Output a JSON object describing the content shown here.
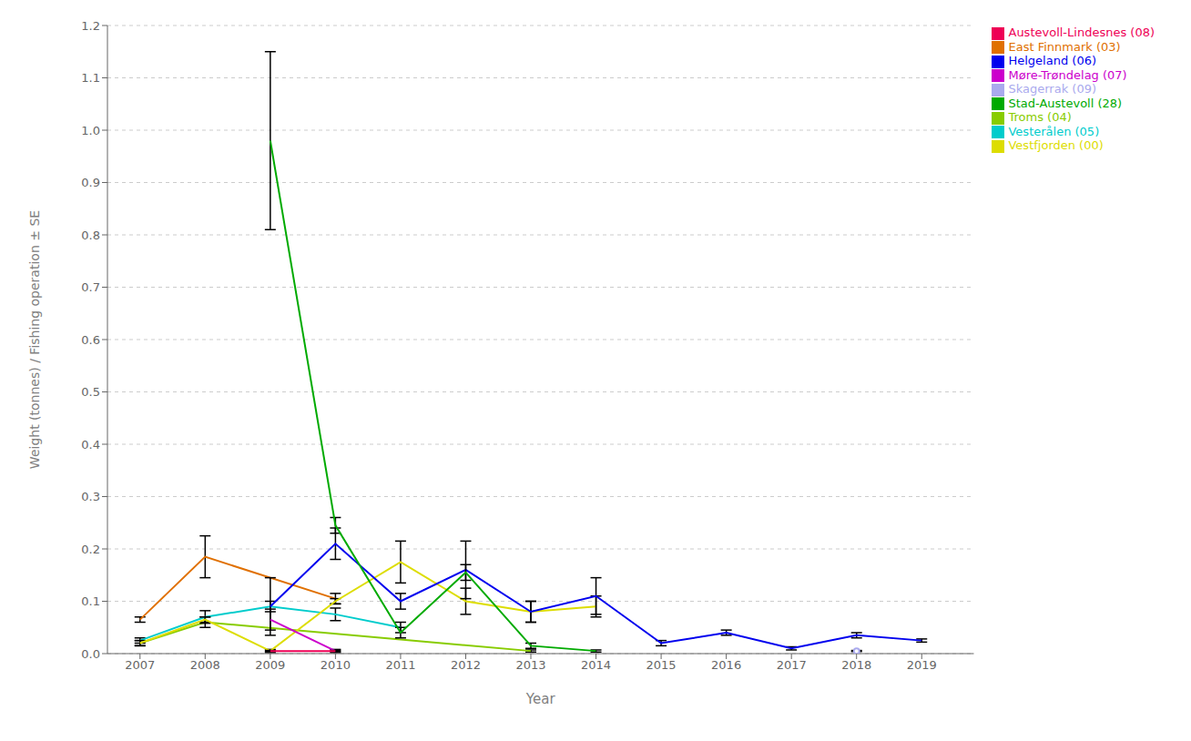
{
  "chart_data": {
    "type": "line",
    "x": [
      2007,
      2008,
      2009,
      2010,
      2011,
      2012,
      2013,
      2014,
      2015,
      2016,
      2017,
      2018,
      2019
    ],
    "xlim": [
      2006.5,
      2019.8
    ],
    "xticks": [
      2007,
      2008,
      2009,
      2010,
      2011,
      2012,
      2013,
      2014,
      2015,
      2016,
      2017,
      2018,
      2019
    ],
    "ylim": [
      0,
      1.2
    ],
    "yticks": [
      {
        "value": 0,
        "label": "0.0"
      },
      0.1,
      0.2,
      0.3,
      0.4,
      0.5,
      0.6,
      0.7,
      0.8,
      0.9,
      {
        "value": 1,
        "label": "1.0"
      },
      1.1,
      1.2
    ],
    "xlabel": "Year",
    "ylabel": "Weight (tonnes) / Fishing operation ± SE",
    "grid": "y",
    "legend": "right",
    "series": [
      {
        "name": "East Finnmark (03)",
        "color": "#E07000",
        "values": [
          0.065,
          0.185,
          null,
          0.105,
          null,
          null,
          null,
          null,
          null,
          null,
          null,
          null,
          null
        ],
        "errors": [
          0.005,
          0.04,
          null,
          0.01,
          null,
          null,
          null,
          null,
          null,
          null,
          null,
          null,
          null
        ]
      },
      {
        "name": "Troms (04)",
        "color": "#88CC00",
        "values": [
          0.02,
          0.06,
          null,
          null,
          null,
          null,
          0.005,
          null,
          null,
          null,
          null,
          null,
          null
        ],
        "errors": [
          0.005,
          0.01,
          null,
          null,
          null,
          null,
          0.002,
          null,
          null,
          null,
          null,
          null,
          null
        ]
      },
      {
        "name": "Vesterålen (05)",
        "color": "#00CCCC",
        "values": [
          0.025,
          0.07,
          0.09,
          0.075,
          0.05,
          null,
          null,
          null,
          null,
          null,
          null,
          null,
          null
        ],
        "errors": [
          0.005,
          0.012,
          0.01,
          0.012,
          0.01,
          null,
          null,
          null,
          null,
          null,
          null,
          null,
          null
        ]
      },
      {
        "name": "Vestfjorden (00)",
        "color": "#DDDD00",
        "values": [
          0.02,
          0.065,
          0.005,
          0.1,
          0.175,
          0.1,
          0.08,
          0.09,
          null,
          null,
          null,
          null,
          null
        ],
        "errors": [
          0.005,
          0.005,
          0.003,
          0.005,
          0.04,
          0.025,
          0.02,
          0.02,
          null,
          null,
          null,
          null,
          null
        ]
      },
      {
        "name": "Helgeland (06)",
        "color": "#0000EE",
        "values": [
          null,
          null,
          0.09,
          0.21,
          0.1,
          0.16,
          0.08,
          0.11,
          0.02,
          0.04,
          0.01,
          0.035,
          0.025
        ],
        "errors": [
          null,
          null,
          0.055,
          0.03,
          0.015,
          0.055,
          0.02,
          0.035,
          0.005,
          0.005,
          0.003,
          0.005,
          0.003
        ]
      },
      {
        "name": "Møre-Trøndelag (07)",
        "color": "#CC00CC",
        "values": [
          null,
          null,
          0.065,
          0.005,
          null,
          null,
          null,
          null,
          null,
          null,
          null,
          null,
          null
        ],
        "errors": [
          null,
          null,
          0.02,
          0.003,
          null,
          null,
          null,
          null,
          null,
          null,
          null,
          null,
          null
        ]
      },
      {
        "name": "Stad-Austevoll (28)",
        "color": "#00AA00",
        "values": [
          null,
          null,
          0.98,
          0.245,
          0.04,
          0.155,
          0.015,
          0.005,
          null,
          null,
          null,
          null,
          null
        ],
        "errors": [
          null,
          null,
          0.17,
          0.015,
          0.01,
          0.015,
          0.005,
          0.002,
          null,
          null,
          null,
          null,
          null
        ]
      },
      {
        "name": "Austevoll-Lindesnes (08)",
        "color": "#EE0055",
        "values": [
          null,
          null,
          0.005,
          0.005,
          null,
          null,
          null,
          null,
          null,
          null,
          null,
          null,
          null
        ],
        "errors": [
          null,
          null,
          0.001,
          0.001,
          null,
          null,
          null,
          null,
          null,
          null,
          null,
          null,
          null
        ]
      },
      {
        "name": "Skagerrak (09)",
        "color": "#AAAAEE",
        "values": [
          null,
          null,
          null,
          null,
          null,
          null,
          null,
          null,
          null,
          null,
          null,
          0.005,
          null
        ],
        "errors": [
          null,
          null,
          null,
          null,
          null,
          null,
          null,
          null,
          null,
          null,
          null,
          0.001,
          null
        ]
      }
    ]
  }
}
